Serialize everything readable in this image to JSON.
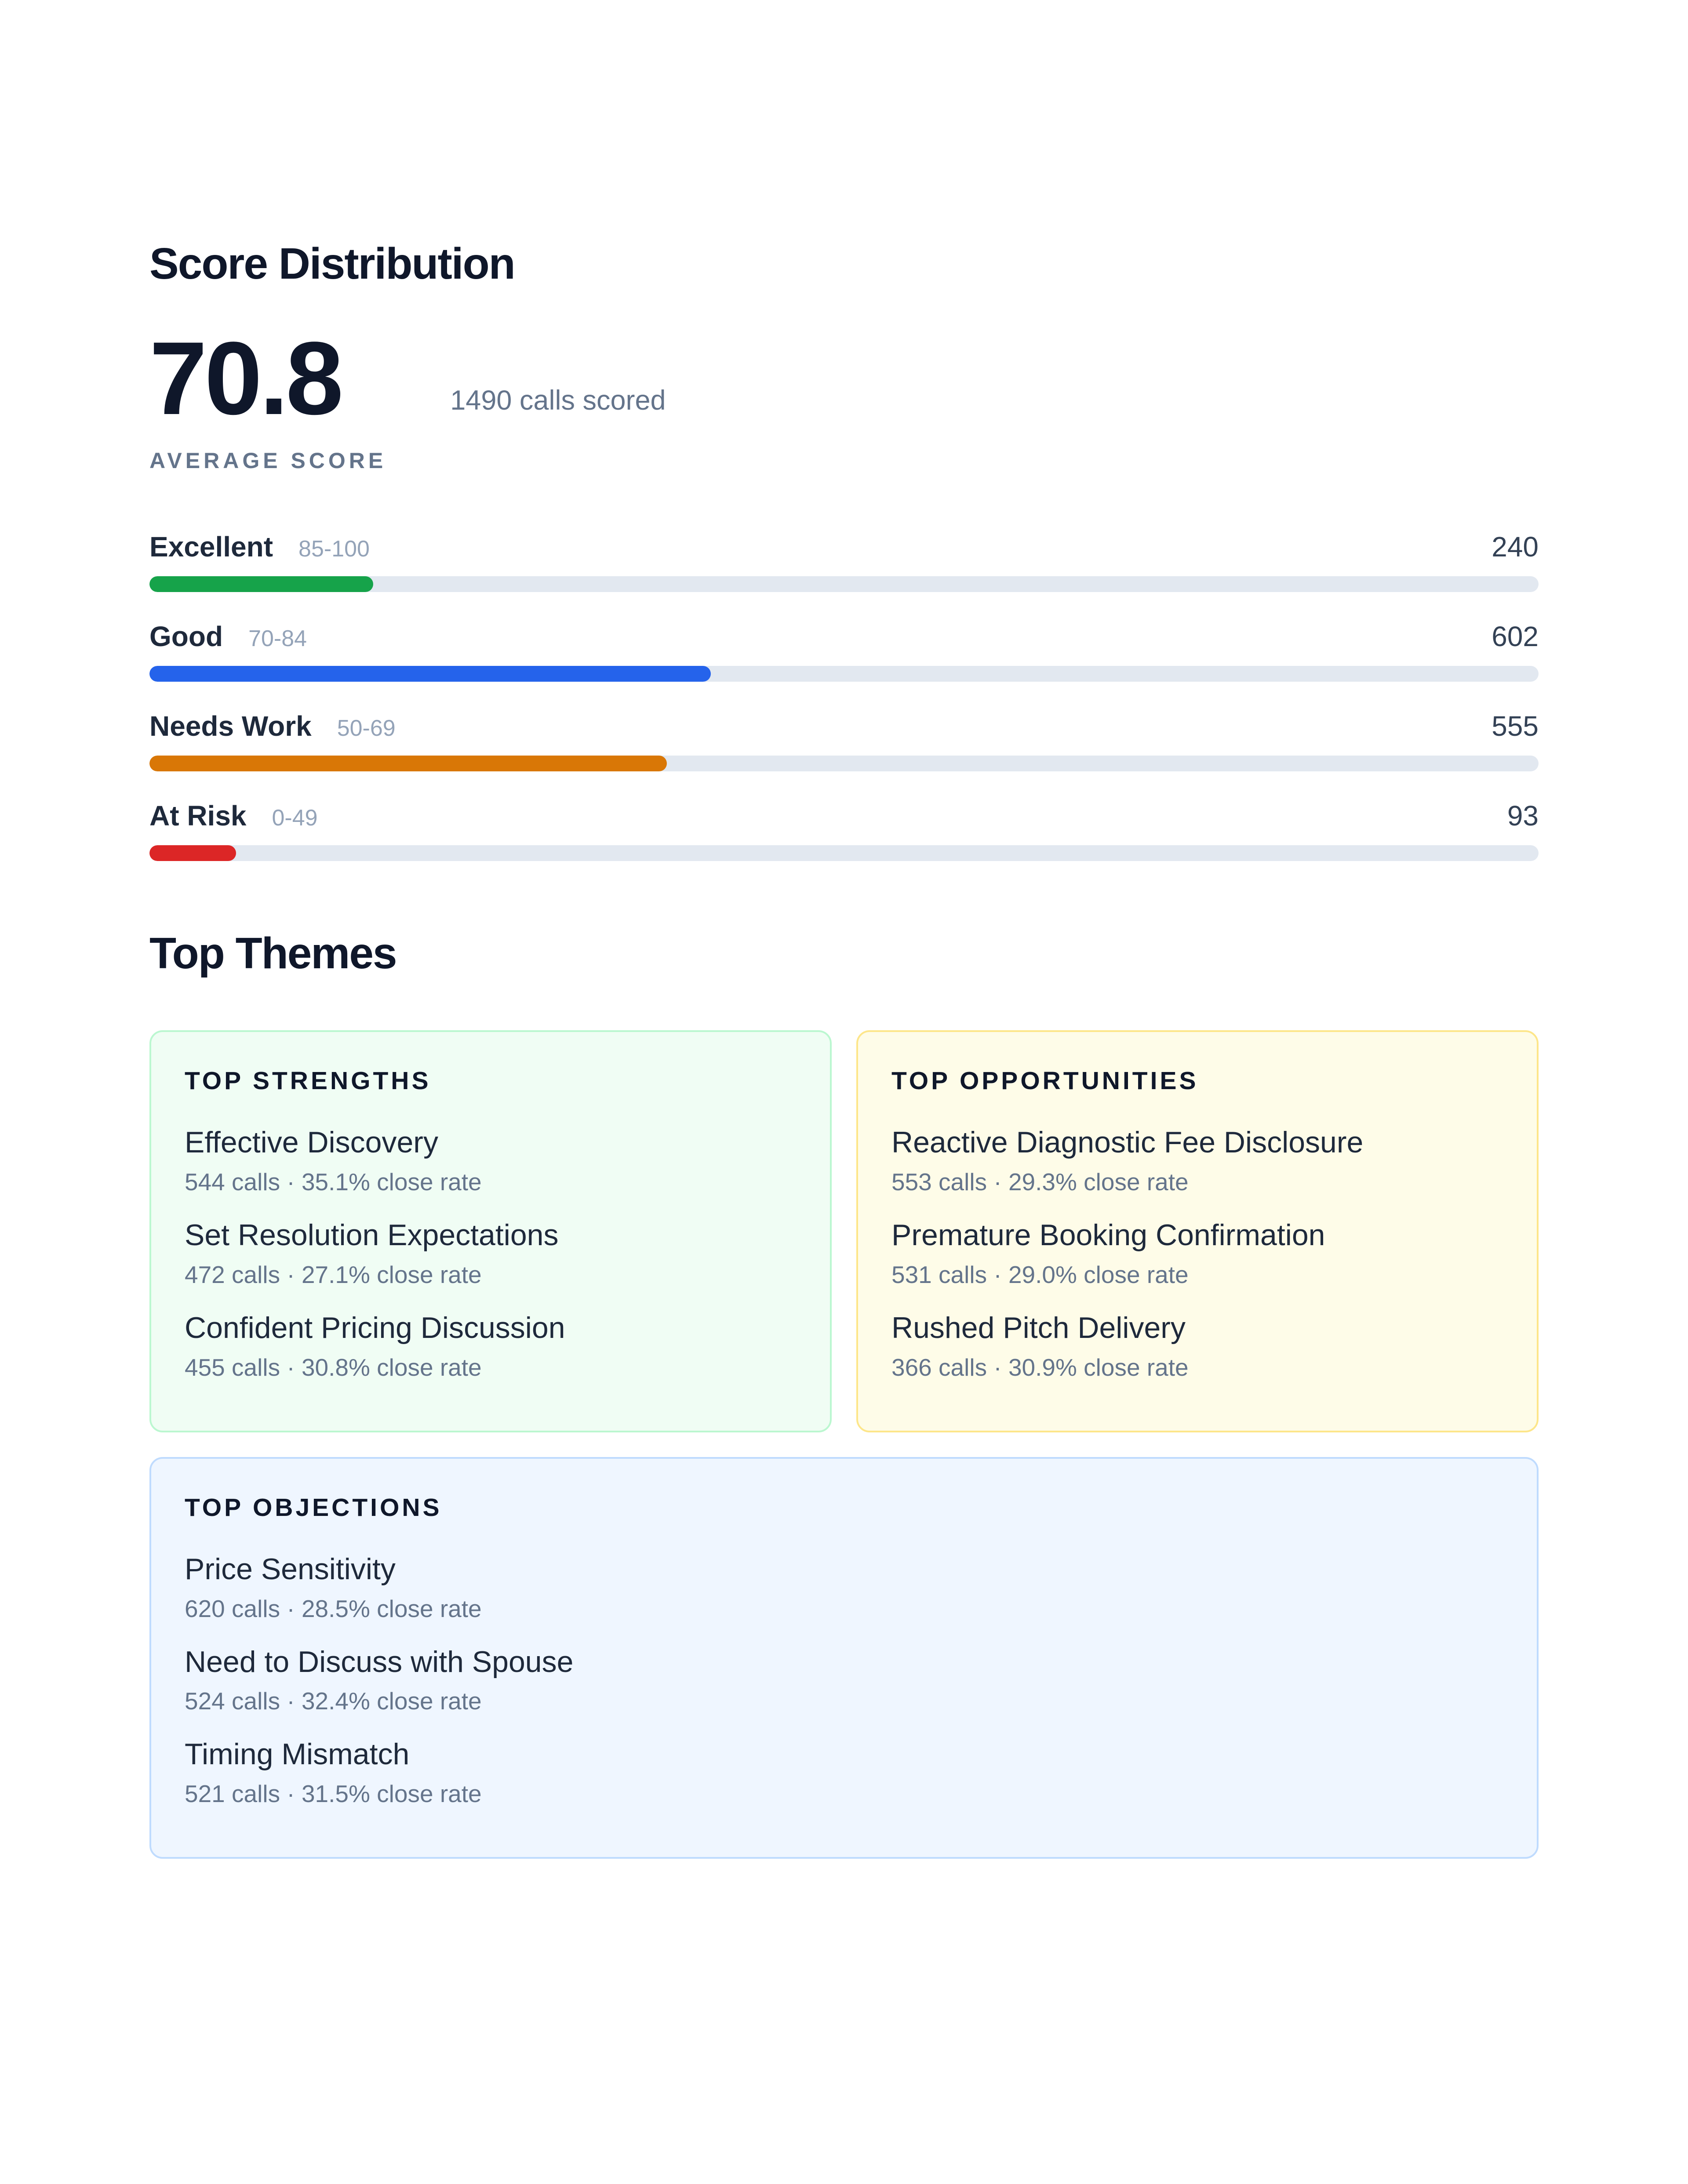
{
  "score_distribution": {
    "title": "Score Distribution",
    "average_score": "70.8",
    "average_label": "AVERAGE SCORE",
    "calls_scored": "1490 calls scored",
    "total_calls": 1490,
    "bars": [
      {
        "name": "Excellent",
        "range": "85-100",
        "count": "240",
        "value": 240,
        "color": "#16a34a"
      },
      {
        "name": "Good",
        "range": "70-84",
        "count": "602",
        "value": 602,
        "color": "#2563eb"
      },
      {
        "name": "Needs Work",
        "range": "50-69",
        "count": "555",
        "value": 555,
        "color": "#d97706"
      },
      {
        "name": "At Risk",
        "range": "0-49",
        "count": "93",
        "value": 93,
        "color": "#dc2626"
      }
    ]
  },
  "top_themes": {
    "title": "Top Themes",
    "strengths": {
      "title": "TOP STRENGTHS",
      "items": [
        {
          "name": "Effective Discovery",
          "meta": "544 calls · 35.1% close rate"
        },
        {
          "name": "Set Resolution Expectations",
          "meta": "472 calls · 27.1% close rate"
        },
        {
          "name": "Confident Pricing Discussion",
          "meta": "455 calls · 30.8% close rate"
        }
      ]
    },
    "opportunities": {
      "title": "TOP OPPORTUNITIES",
      "items": [
        {
          "name": "Reactive Diagnostic Fee Disclosure",
          "meta": "553 calls · 29.3% close rate"
        },
        {
          "name": "Premature Booking Confirmation",
          "meta": "531 calls · 29.0% close rate"
        },
        {
          "name": "Rushed Pitch Delivery",
          "meta": "366 calls · 30.9% close rate"
        }
      ]
    },
    "objections": {
      "title": "TOP OBJECTIONS",
      "items": [
        {
          "name": "Price Sensitivity",
          "meta": "620 calls · 28.5% close rate"
        },
        {
          "name": "Need to Discuss with Spouse",
          "meta": "524 calls · 32.4% close rate"
        },
        {
          "name": "Timing Mismatch",
          "meta": "521 calls · 31.5% close rate"
        }
      ]
    }
  }
}
